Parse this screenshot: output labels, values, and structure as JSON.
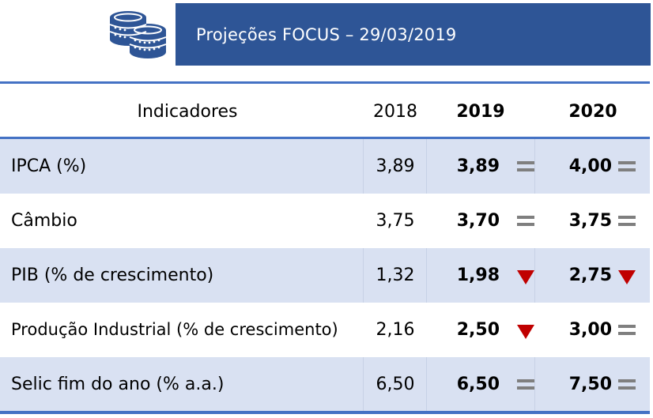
{
  "banner": {
    "title": "Projeções FOCUS – 29/03/2019",
    "icon": "coins-icon"
  },
  "colors": {
    "banner": "#2e5596",
    "rule": "#4472c4",
    "shade": "#d9e1f2",
    "down": "#c00000",
    "equal": "#7f7f7f"
  },
  "table": {
    "headers": {
      "indicator": "Indicadores",
      "y2018": "2018",
      "y2019": "2019",
      "y2020": "2020"
    },
    "rows": [
      {
        "name": "IPCA (%)",
        "v2018": "3,89",
        "v2019": "3,89",
        "t2019": "equal",
        "v2020": "4,00",
        "t2020": "equal"
      },
      {
        "name": "Câmbio",
        "v2018": "3,75",
        "v2019": "3,70",
        "t2019": "equal",
        "v2020": "3,75",
        "t2020": "equal"
      },
      {
        "name": "PIB (% de crescimento)",
        "v2018": "1,32",
        "v2019": "1,98",
        "t2019": "down",
        "v2020": "2,75",
        "t2020": "down"
      },
      {
        "name": "Produção Industrial (% de crescimento)",
        "v2018": "2,16",
        "v2019": "2,50",
        "t2019": "down",
        "v2020": "3,00",
        "t2020": "equal"
      },
      {
        "name": "Selic fim do ano (% a.a.)",
        "v2018": "6,50",
        "v2019": "6,50",
        "t2019": "equal",
        "v2020": "7,50",
        "t2020": "equal"
      }
    ]
  }
}
